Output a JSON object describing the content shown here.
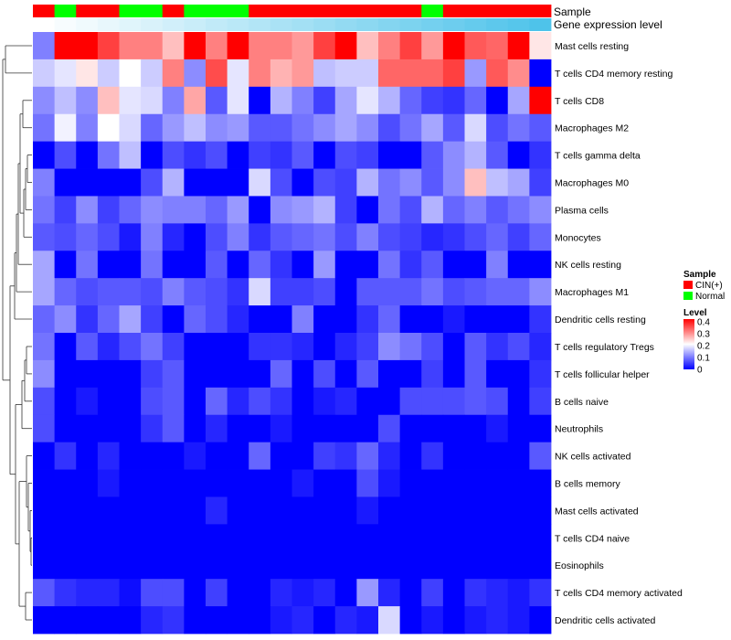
{
  "chart_data": {
    "type": "heatmap",
    "title": "",
    "rows": [
      "Mast cells resting",
      "T cells CD4 memory resting",
      "T cells CD8",
      "Macrophages M2",
      "T cells gamma delta",
      "Macrophages M0",
      "Plasma cells",
      "Monocytes",
      "NK cells resting",
      "Macrophages M1",
      "Dendritic cells resting",
      "T cells regulatory  Tregs",
      "T cells follicular helper",
      "B cells naive",
      "Neutrophils",
      "NK cells activated",
      "B cells memory",
      "Mast cells activated",
      "T cells CD4 naive",
      "Eosinophils",
      "T cells CD4 memory activated",
      "Dendritic cells activated"
    ],
    "sample_groups": [
      "CIN(+)",
      "Normal",
      "CIN(+)",
      "CIN(+)",
      "Normal",
      "Normal",
      "CIN(+)",
      "Normal",
      "Normal",
      "Normal",
      "CIN(+)",
      "CIN(+)",
      "CIN(+)",
      "CIN(+)",
      "CIN(+)",
      "CIN(+)",
      "CIN(+)",
      "CIN(+)",
      "Normal",
      "CIN(+)",
      "CIN(+)",
      "CIN(+)",
      "CIN(+)",
      "CIN(+)"
    ],
    "expression_level": [
      0.0,
      0.02,
      0.04,
      0.06,
      0.08,
      0.1,
      0.12,
      0.14,
      0.16,
      0.18,
      0.2,
      0.22,
      0.24,
      0.26,
      0.28,
      0.3,
      0.32,
      0.34,
      0.36,
      0.38,
      0.4,
      0.42,
      0.44,
      0.46
    ],
    "values": [
      [
        0.1,
        0.4,
        0.4,
        0.35,
        0.3,
        0.3,
        0.25,
        0.4,
        0.3,
        0.4,
        0.3,
        0.3,
        0.28,
        0.35,
        0.4,
        0.25,
        0.3,
        0.35,
        0.28,
        0.4,
        0.33,
        0.32,
        0.4,
        0.22
      ],
      [
        0.16,
        0.18,
        0.22,
        0.16,
        0.2,
        0.16,
        0.3,
        0.11,
        0.34,
        0.18,
        0.3,
        0.26,
        0.28,
        0.15,
        0.16,
        0.16,
        0.32,
        0.32,
        0.32,
        0.35,
        0.12,
        0.33,
        0.29,
        0.0
      ],
      [
        0.11,
        0.15,
        0.11,
        0.25,
        0.18,
        0.17,
        0.1,
        0.27,
        0.07,
        0.18,
        0.0,
        0.14,
        0.1,
        0.05,
        0.13,
        0.18,
        0.14,
        0.08,
        0.05,
        0.04,
        0.08,
        0.0,
        0.13,
        0.4
      ],
      [
        0.09,
        0.19,
        0.1,
        0.2,
        0.17,
        0.08,
        0.12,
        0.15,
        0.11,
        0.12,
        0.07,
        0.07,
        0.09,
        0.11,
        0.13,
        0.11,
        0.06,
        0.09,
        0.13,
        0.07,
        0.17,
        0.06,
        0.09,
        0.07
      ],
      [
        0.0,
        0.06,
        0.0,
        0.09,
        0.15,
        0.0,
        0.06,
        0.04,
        0.06,
        0.0,
        0.05,
        0.04,
        0.07,
        0.0,
        0.06,
        0.05,
        0.0,
        0.0,
        0.07,
        0.11,
        0.14,
        0.07,
        0.0,
        0.04
      ],
      [
        0.1,
        0.0,
        0.0,
        0.0,
        0.0,
        0.06,
        0.14,
        0.0,
        0.0,
        0.0,
        0.17,
        0.06,
        0.0,
        0.06,
        0.05,
        0.14,
        0.09,
        0.11,
        0.07,
        0.11,
        0.25,
        0.15,
        0.13,
        0.05
      ],
      [
        0.09,
        0.05,
        0.11,
        0.05,
        0.08,
        0.11,
        0.1,
        0.1,
        0.08,
        0.12,
        0.0,
        0.11,
        0.12,
        0.14,
        0.05,
        0.0,
        0.09,
        0.06,
        0.14,
        0.08,
        0.1,
        0.07,
        0.09,
        0.11
      ],
      [
        0.07,
        0.06,
        0.08,
        0.06,
        0.02,
        0.1,
        0.03,
        0.0,
        0.06,
        0.1,
        0.04,
        0.07,
        0.08,
        0.09,
        0.06,
        0.1,
        0.06,
        0.05,
        0.03,
        0.04,
        0.06,
        0.08,
        0.05,
        0.08
      ],
      [
        0.13,
        0.0,
        0.09,
        0.0,
        0.0,
        0.09,
        0.0,
        0.0,
        0.07,
        0.0,
        0.08,
        0.04,
        0.0,
        0.12,
        0.0,
        0.0,
        0.09,
        0.04,
        0.07,
        0.0,
        0.0,
        0.1,
        0.0,
        0.0
      ],
      [
        0.13,
        0.08,
        0.06,
        0.07,
        0.07,
        0.06,
        0.1,
        0.07,
        0.06,
        0.04,
        0.17,
        0.05,
        0.05,
        0.06,
        0.0,
        0.07,
        0.07,
        0.07,
        0.09,
        0.06,
        0.07,
        0.08,
        0.08,
        0.11
      ],
      [
        0.08,
        0.11,
        0.04,
        0.08,
        0.13,
        0.05,
        0.0,
        0.08,
        0.06,
        0.03,
        0.0,
        0.0,
        0.1,
        0.0,
        0.0,
        0.04,
        0.08,
        0.0,
        0.0,
        0.02,
        0.0,
        0.0,
        0.0,
        0.04
      ],
      [
        0.09,
        0.0,
        0.07,
        0.03,
        0.06,
        0.09,
        0.05,
        0.0,
        0.0,
        0.0,
        0.04,
        0.04,
        0.03,
        0.0,
        0.03,
        0.05,
        0.11,
        0.09,
        0.06,
        0.0,
        0.07,
        0.04,
        0.06,
        0.03
      ],
      [
        0.11,
        0.0,
        0.0,
        0.0,
        0.0,
        0.05,
        0.07,
        0.0,
        0.0,
        0.0,
        0.0,
        0.08,
        0.0,
        0.06,
        0.0,
        0.07,
        0.0,
        0.0,
        0.05,
        0.0,
        0.07,
        0.0,
        0.0,
        0.04
      ],
      [
        0.06,
        0.0,
        0.02,
        0.0,
        0.0,
        0.06,
        0.07,
        0.0,
        0.08,
        0.03,
        0.06,
        0.04,
        0.0,
        0.02,
        0.03,
        0.0,
        0.0,
        0.06,
        0.06,
        0.06,
        0.07,
        0.06,
        0.0,
        0.05
      ],
      [
        0.06,
        0.0,
        0.0,
        0.0,
        0.0,
        0.04,
        0.07,
        0.0,
        0.03,
        0.0,
        0.0,
        0.02,
        0.0,
        0.0,
        0.0,
        0.0,
        0.06,
        0.0,
        0.0,
        0.0,
        0.0,
        0.02,
        0.0,
        0.0
      ],
      [
        0.0,
        0.04,
        0.0,
        0.03,
        0.0,
        0.0,
        0.0,
        0.02,
        0.0,
        0.0,
        0.08,
        0.0,
        0.0,
        0.05,
        0.04,
        0.08,
        0.03,
        0.0,
        0.04,
        0.0,
        0.0,
        0.0,
        0.0,
        0.07
      ],
      [
        0.0,
        0.0,
        0.0,
        0.02,
        0.0,
        0.0,
        0.0,
        0.0,
        0.0,
        0.0,
        0.0,
        0.0,
        0.02,
        0.0,
        0.0,
        0.06,
        0.02,
        0.0,
        0.0,
        0.0,
        0.0,
        0.0,
        0.0,
        0.0
      ],
      [
        0.0,
        0.0,
        0.0,
        0.0,
        0.0,
        0.0,
        0.0,
        0.0,
        0.03,
        0.0,
        0.0,
        0.0,
        0.0,
        0.0,
        0.0,
        0.02,
        0.0,
        0.0,
        0.0,
        0.0,
        0.0,
        0.0,
        0.0,
        0.0
      ],
      [
        0.0,
        0.0,
        0.0,
        0.0,
        0.0,
        0.0,
        0.0,
        0.0,
        0.0,
        0.0,
        0.0,
        0.0,
        0.0,
        0.0,
        0.0,
        0.0,
        0.0,
        0.0,
        0.0,
        0.0,
        0.0,
        0.0,
        0.0,
        0.0
      ],
      [
        0.0,
        0.0,
        0.0,
        0.0,
        0.0,
        0.0,
        0.0,
        0.0,
        0.0,
        0.0,
        0.0,
        0.0,
        0.0,
        0.0,
        0.0,
        0.0,
        0.0,
        0.0,
        0.0,
        0.0,
        0.0,
        0.0,
        0.0,
        0.0
      ],
      [
        0.07,
        0.04,
        0.03,
        0.03,
        0.01,
        0.06,
        0.06,
        0.0,
        0.05,
        0.0,
        0.0,
        0.03,
        0.02,
        0.03,
        0.0,
        0.12,
        0.03,
        0.0,
        0.05,
        0.0,
        0.04,
        0.03,
        0.02,
        0.04
      ],
      [
        0.0,
        0.0,
        0.0,
        0.0,
        0.0,
        0.03,
        0.04,
        0.0,
        0.0,
        0.0,
        0.0,
        0.02,
        0.03,
        0.0,
        0.03,
        0.02,
        0.17,
        0.0,
        0.02,
        0.0,
        0.02,
        0.03,
        0.02,
        0.0
      ]
    ],
    "color_scale": {
      "min": 0,
      "mid": 0.2,
      "max": 0.4,
      "low_color": "#0000ff",
      "mid_color": "#ffffff",
      "high_color": "#ff0000"
    },
    "annotations": {
      "sample_label": "Sample",
      "expression_label": "Gene expression level",
      "group_colors": {
        "CIN(+)": "#ff0000",
        "Normal": "#00ff00"
      },
      "expression_colors": [
        "#ffffff",
        "#4ec3ea"
      ]
    },
    "legend": {
      "sample_title": "Sample",
      "sample_entries": [
        "CIN(+)",
        "Normal"
      ],
      "level_title": "Level",
      "level_ticks": [
        "0.4",
        "0.3",
        "0.2",
        "0.1",
        "0"
      ],
      "placement": "right"
    }
  }
}
